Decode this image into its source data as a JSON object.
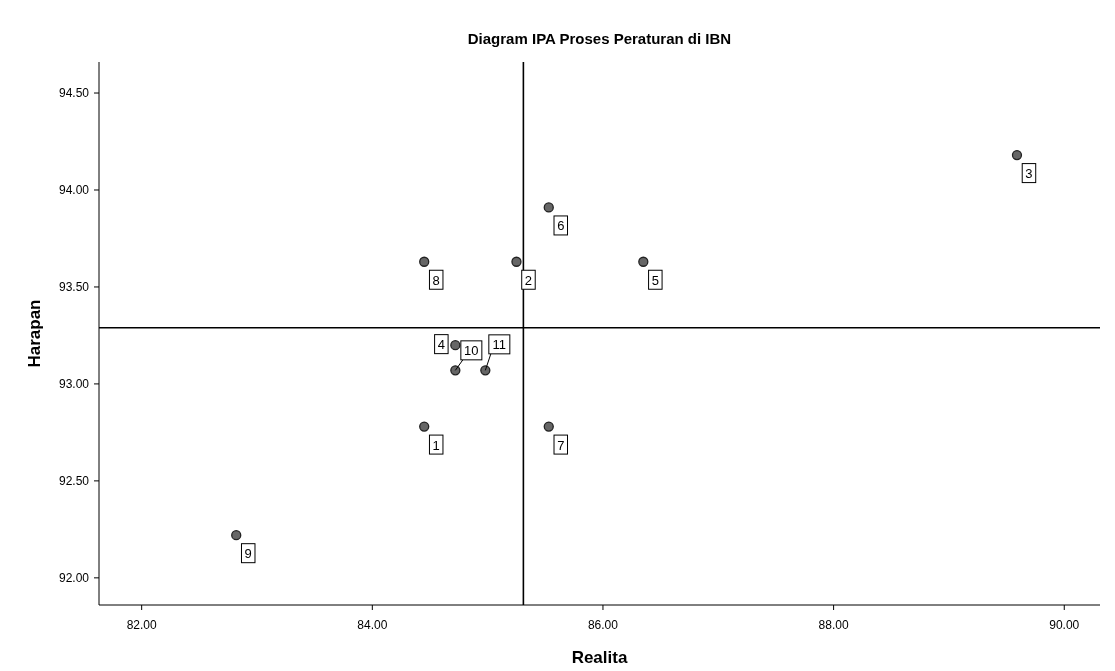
{
  "chart_data": {
    "type": "scatter",
    "title": "Diagram IPA Proses Peraturan di IBN",
    "xlabel": "Realita",
    "ylabel": "Harapan",
    "x": [
      84.45,
      85.25,
      89.59,
      84.72,
      86.35,
      85.53,
      85.53,
      84.45,
      82.82,
      84.72,
      84.98
    ],
    "values": [
      92.78,
      93.63,
      94.18,
      93.2,
      93.63,
      93.91,
      92.78,
      93.63,
      92.22,
      93.07,
      93.07
    ],
    "annotations": [
      {
        "text": "1",
        "x": 84.45,
        "y": 92.78
      },
      {
        "text": "2",
        "x": 85.25,
        "y": 93.63
      },
      {
        "text": "3",
        "x": 89.59,
        "y": 94.18
      },
      {
        "text": "4",
        "x": 84.72,
        "y": 93.2
      },
      {
        "text": "5",
        "x": 86.35,
        "y": 93.63
      },
      {
        "text": "6",
        "x": 85.53,
        "y": 93.91
      },
      {
        "text": "7",
        "x": 85.53,
        "y": 92.78
      },
      {
        "text": "8",
        "x": 84.45,
        "y": 93.63
      },
      {
        "text": "9",
        "x": 82.82,
        "y": 92.22
      },
      {
        "text": "10",
        "x": 84.72,
        "y": 93.07
      },
      {
        "text": "11",
        "x": 84.98,
        "y": 93.07
      }
    ],
    "color": "#666666",
    "marker": "circle",
    "grid": false,
    "xlim": [
      81.63,
      90.31
    ],
    "ylim": [
      91.86,
      94.66
    ],
    "xticks": [
      {
        "value": 82,
        "label": "82.00"
      },
      {
        "value": 84,
        "label": "84.00"
      },
      {
        "value": 86,
        "label": "86.00"
      },
      {
        "value": 88,
        "label": "88.00"
      },
      {
        "value": 90,
        "label": "90.00"
      }
    ],
    "yticks": [
      {
        "value": 92,
        "label": "92.00"
      },
      {
        "value": 92.5,
        "label": "92.50"
      },
      {
        "value": 93,
        "label": "93.00"
      },
      {
        "value": 93.5,
        "label": "93.50"
      },
      {
        "value": 94,
        "label": "94.00"
      },
      {
        "value": 94.5,
        "label": "94.50"
      }
    ],
    "ref_lines": [
      {
        "axis": "x",
        "value": 85.31,
        "color": "#000000"
      },
      {
        "axis": "y",
        "value": 93.29,
        "color": "#000000"
      }
    ]
  }
}
